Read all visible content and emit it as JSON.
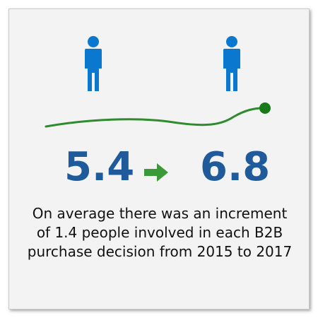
{
  "metrics": {
    "start_value": "5.4",
    "end_value": "6.8"
  },
  "caption": "On average there was an increment of 1.4 people involved in each B2B purchase decision from 2015 to 2017",
  "icons": {
    "person_left": "person-icon",
    "person_right": "person-icon",
    "arrow": "right-arrow-icon"
  },
  "colors": {
    "number": "#1f5b9a",
    "person": "#0b78d0",
    "accent_green": "#2e8b2e",
    "background": "#f3f3f3"
  }
}
